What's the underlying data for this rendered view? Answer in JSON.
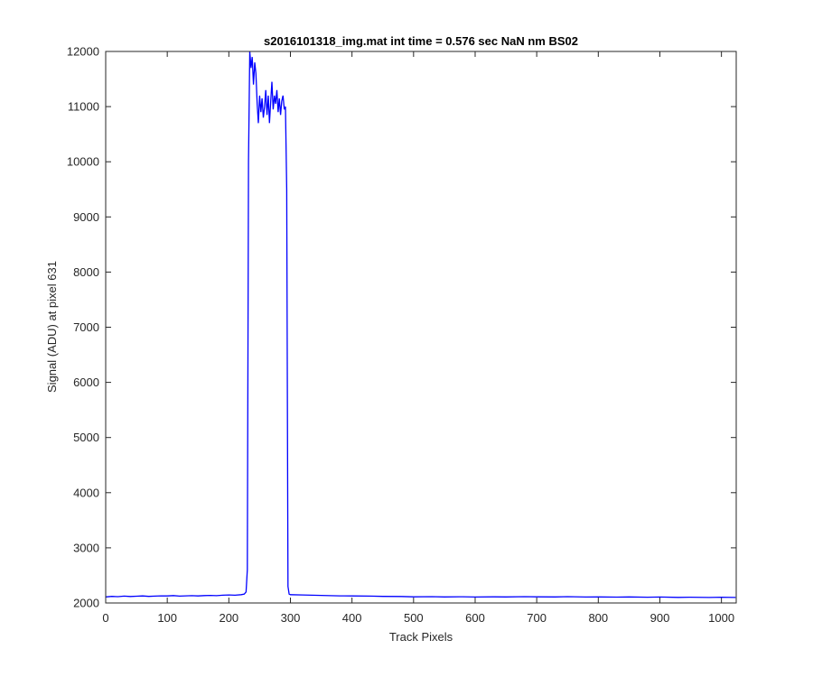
{
  "chart_data": {
    "type": "line",
    "title": "s2016101318_img.mat int time = 0.576 sec  NaN nm BS02",
    "xlabel": "Track Pixels",
    "ylabel": "Signal (ADU) at pixel 631",
    "xlim": [
      0,
      1024
    ],
    "ylim": [
      2000,
      12000
    ],
    "xticks": [
      0,
      100,
      200,
      300,
      400,
      500,
      600,
      700,
      800,
      900,
      1000
    ],
    "yticks": [
      2000,
      3000,
      4000,
      5000,
      6000,
      7000,
      8000,
      9000,
      10000,
      11000,
      12000
    ],
    "grid": false,
    "line_color": "#0000ff",
    "series": [
      {
        "x": [
          0,
          10,
          20,
          30,
          40,
          50,
          60,
          70,
          80,
          90,
          100,
          110,
          120,
          130,
          140,
          150,
          160,
          170,
          180,
          190,
          200,
          210,
          220,
          225,
          228,
          230,
          232,
          234,
          236,
          238,
          240,
          242,
          244,
          246,
          248,
          250,
          252,
          254,
          256,
          258,
          260,
          262,
          264,
          266,
          268,
          270,
          272,
          274,
          276,
          278,
          280,
          282,
          284,
          286,
          288,
          290,
          292,
          294,
          296,
          298,
          300,
          320,
          350,
          380,
          400,
          430,
          450,
          480,
          500,
          530,
          550,
          580,
          600,
          630,
          650,
          680,
          700,
          730,
          750,
          780,
          800,
          830,
          850,
          880,
          900,
          930,
          950,
          980,
          1000,
          1023
        ],
        "y": [
          2110,
          2120,
          2115,
          2125,
          2118,
          2122,
          2128,
          2120,
          2125,
          2130,
          2128,
          2135,
          2125,
          2130,
          2132,
          2128,
          2135,
          2138,
          2132,
          2140,
          2145,
          2140,
          2150,
          2160,
          2200,
          2600,
          10000,
          12000,
          11700,
          11900,
          11400,
          11800,
          11600,
          11050,
          10700,
          11200,
          10900,
          11150,
          10800,
          11000,
          11300,
          10850,
          11200,
          10700,
          11100,
          11450,
          10950,
          11200,
          11050,
          11300,
          10900,
          11150,
          10850,
          11100,
          11200,
          10950,
          11000,
          9500,
          2300,
          2160,
          2150,
          2145,
          2138,
          2130,
          2128,
          2124,
          2120,
          2118,
          2112,
          2115,
          2110,
          2113,
          2108,
          2112,
          2110,
          2115,
          2112,
          2110,
          2114,
          2108,
          2110,
          2106,
          2110,
          2104,
          2108,
          2102,
          2105,
          2100,
          2104,
          2100
        ]
      }
    ]
  }
}
